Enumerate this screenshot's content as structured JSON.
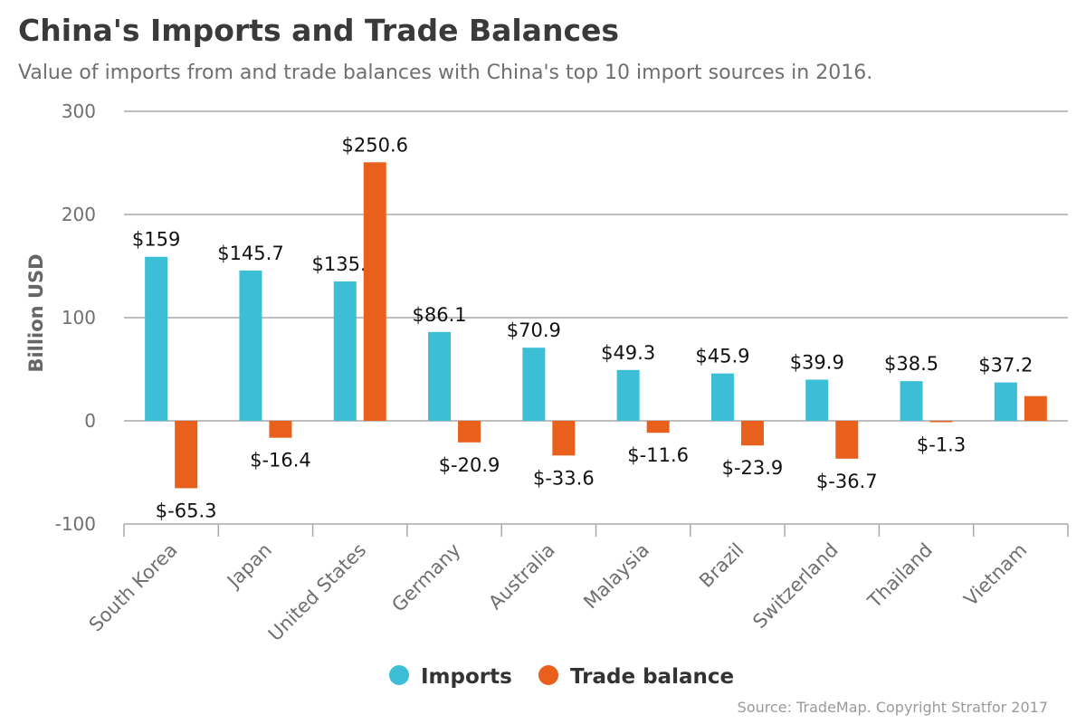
{
  "title": "China's Imports and Trade Balances",
  "subtitle": "Value of imports from and trade balances with China's top 10 import sources in 2016.",
  "source": "Source: TradeMap. Copyright Stratfor 2017",
  "colors": {
    "imports": "#3cbfd6",
    "trade_balance": "#e8601c",
    "grid": "#a9a9a9",
    "axis_text": "#6f6f6f"
  },
  "chart_data": {
    "type": "bar",
    "ylabel": "Billion USD",
    "xlabel": "",
    "ylim": [
      -100,
      300
    ],
    "yticks": [
      300,
      200,
      100,
      0,
      -100
    ],
    "grid": true,
    "legend_position": "bottom-center",
    "categories": [
      "South Korea",
      "Japan",
      "United States",
      "Germany",
      "Australia",
      "Malaysia",
      "Brazil",
      "Switzerland",
      "Thailand",
      "Vietnam"
    ],
    "series": [
      {
        "name": "Imports",
        "values": [
          159,
          145.7,
          135.1,
          86.1,
          70.9,
          49.3,
          45.9,
          39.9,
          38.5,
          37.2
        ],
        "labels": [
          "$159",
          "$145.7",
          "$135.1",
          "$86.1",
          "$70.9",
          "$49.3",
          "$45.9",
          "$39.9",
          "$38.5",
          "$37.2"
        ]
      },
      {
        "name": "Trade balance",
        "values": [
          -65.3,
          -16.4,
          250.6,
          -20.9,
          -33.6,
          -11.6,
          -23.9,
          -36.7,
          -1.3,
          24
        ],
        "labels": [
          "$-65.3",
          "$-16.4",
          "$250.6",
          "$-20.9",
          "$-33.6",
          "$-11.6",
          "$-23.9",
          "$-36.7",
          "$-1.3",
          ""
        ]
      }
    ]
  }
}
